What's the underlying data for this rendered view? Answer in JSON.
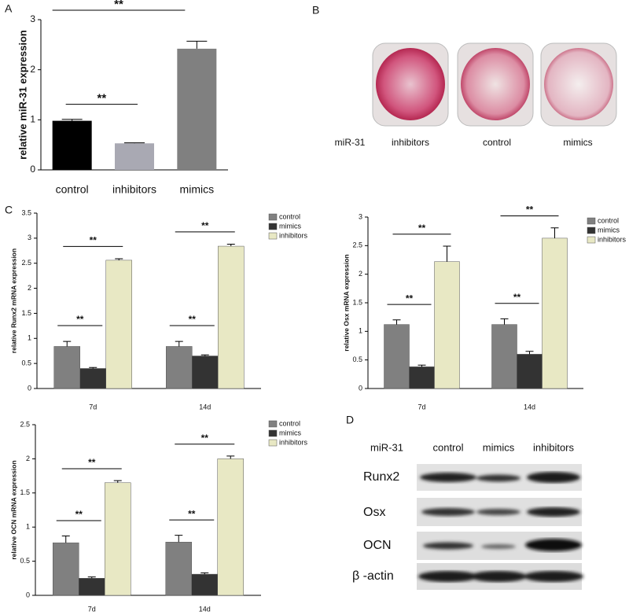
{
  "panel_labels": [
    "A",
    "B",
    "C",
    "D"
  ],
  "chart_data": [
    {
      "type": "bar",
      "y_label": "relative miR-31 expression",
      "categories": [
        "control",
        "inhibitors",
        "mimics"
      ],
      "values": [
        0.98,
        0.53,
        2.42
      ],
      "errors": [
        0.03,
        0.01,
        0.15
      ],
      "colors": [
        "#000000",
        "#a9a9b3",
        "#808080"
      ],
      "ylim": [
        0,
        3
      ],
      "yticks": [
        0,
        1,
        2,
        3
      ],
      "annotations": [
        "**",
        "**"
      ]
    },
    {
      "type": "grouped_bar",
      "y_label": "relative Runx2 mRNA expression",
      "categories": [
        "7d",
        "14d"
      ],
      "series": [
        {
          "name": "control",
          "color": "#808080",
          "values": [
            0.84,
            0.84
          ],
          "errors": [
            0.1,
            0.1
          ]
        },
        {
          "name": "mimics",
          "color": "#333333",
          "values": [
            0.4,
            0.65
          ],
          "errors": [
            0.02,
            0.02
          ]
        },
        {
          "name": "inhibitors",
          "color": "#e8e8c4",
          "values": [
            2.56,
            2.84
          ],
          "errors": [
            0.03,
            0.04
          ]
        }
      ],
      "ylim": [
        0,
        3.5
      ],
      "yticks": [
        0,
        0.5,
        1,
        1.5,
        2,
        2.5,
        3,
        3.5
      ],
      "annotations": [
        "**",
        "**",
        "**",
        "**"
      ]
    },
    {
      "type": "grouped_bar",
      "y_label": "relative Osx mRNA expression",
      "categories": [
        "7d",
        "14d"
      ],
      "series": [
        {
          "name": "control",
          "color": "#808080",
          "values": [
            1.12,
            1.12
          ],
          "errors": [
            0.08,
            0.1
          ]
        },
        {
          "name": "mimics",
          "color": "#333333",
          "values": [
            0.38,
            0.6
          ],
          "errors": [
            0.03,
            0.05
          ]
        },
        {
          "name": "inhibitors",
          "color": "#e8e8c4",
          "values": [
            2.22,
            2.63
          ],
          "errors": [
            0.27,
            0.18
          ]
        }
      ],
      "ylim": [
        0,
        3
      ],
      "yticks": [
        0,
        0.5,
        1,
        1.5,
        2,
        2.5,
        3
      ],
      "annotations": [
        "**",
        "**",
        "**",
        "**"
      ]
    },
    {
      "type": "grouped_bar",
      "y_label": "relative OCN mRNA expression",
      "categories": [
        "7d",
        "14d"
      ],
      "series": [
        {
          "name": "control",
          "color": "#808080",
          "values": [
            0.77,
            0.78
          ],
          "errors": [
            0.1,
            0.1
          ]
        },
        {
          "name": "mimics",
          "color": "#333333",
          "values": [
            0.25,
            0.31
          ],
          "errors": [
            0.02,
            0.02
          ]
        },
        {
          "name": "inhibitors",
          "color": "#e8e8c4",
          "values": [
            1.65,
            2.0
          ],
          "errors": [
            0.03,
            0.04
          ]
        }
      ],
      "ylim": [
        0,
        2.5
      ],
      "yticks": [
        0,
        0.5,
        1,
        1.5,
        2,
        2.5
      ],
      "annotations": [
        "**",
        "**",
        "**",
        "**"
      ]
    }
  ],
  "panel_b": {
    "row_label": "miR-31",
    "columns": [
      "inhibitors",
      "control",
      "mimics"
    ]
  },
  "panel_d": {
    "header_label": "miR-31",
    "columns": [
      "control",
      "mimics",
      "inhibitors"
    ],
    "rows": [
      "Runx2",
      "Osx",
      "OCN",
      "β -actin"
    ]
  }
}
